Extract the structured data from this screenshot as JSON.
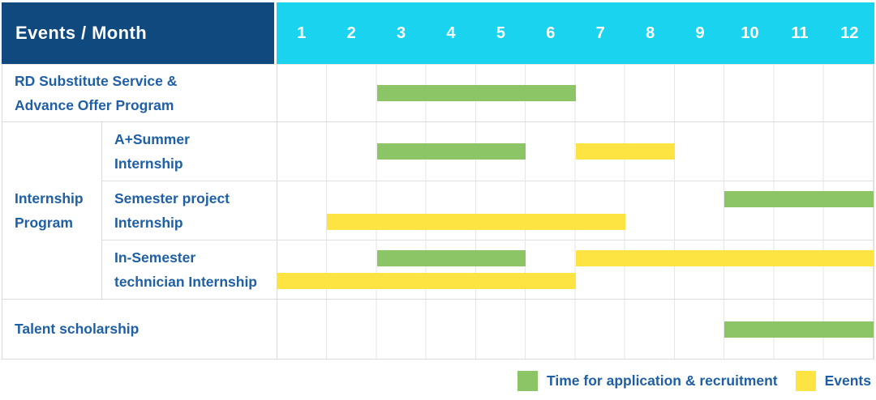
{
  "table": {
    "corner_label": "Events / Month",
    "months": [
      "1",
      "2",
      "3",
      "4",
      "5",
      "6",
      "7",
      "8",
      "9",
      "10",
      "11",
      "12"
    ],
    "group_label": "Internship\nProgram"
  },
  "colors": {
    "header_navy": "#10497E",
    "header_cyan": "#19D3EF",
    "label_blue": "#1F5FA5",
    "bar_green": "#8BC566",
    "bar_yellow": "#FDE443",
    "grid_line": "#DBDBDB"
  },
  "chart_data": {
    "type": "bar",
    "subtype": "gantt-table",
    "title": "Events / Month",
    "x_axis": {
      "label": "Month",
      "ticks": [
        1,
        2,
        3,
        4,
        5,
        6,
        7,
        8,
        9,
        10,
        11,
        12
      ],
      "range": [
        1,
        12
      ],
      "grid": true
    },
    "legend": [
      {
        "key": "application",
        "label": "Time for application & recruitment",
        "color": "#8BC566"
      },
      {
        "key": "events",
        "label": "Events",
        "color": "#FDE443"
      }
    ],
    "rows": [
      {
        "label": "RD Substitute Service &\nAdvance Offer Program",
        "group": null,
        "bars": [
          {
            "category": "Time for application & recruitment",
            "months": [
              3,
              6
            ],
            "lane": 0
          }
        ]
      },
      {
        "label": "A+Summer\nInternship",
        "group": "Internship Program",
        "bars": [
          {
            "category": "Time for application & recruitment",
            "months": [
              3,
              5
            ],
            "lane": 0
          },
          {
            "category": "Events",
            "months": [
              7,
              8
            ],
            "lane": 0
          }
        ]
      },
      {
        "label": "Semester project\nInternship",
        "group": "Internship Program",
        "bars": [
          {
            "category": "Time for application & recruitment",
            "months": [
              10,
              12
            ],
            "lane": 0
          },
          {
            "category": "Events",
            "months": [
              2,
              7
            ],
            "lane": 1
          }
        ]
      },
      {
        "label": "In-Semester\ntechnician Internship",
        "group": "Internship Program",
        "bars": [
          {
            "category": "Time for application & recruitment",
            "months": [
              3,
              5
            ],
            "lane": 0
          },
          {
            "category": "Events",
            "months": [
              7,
              12
            ],
            "lane": 0
          },
          {
            "category": "Events",
            "months": [
              1,
              6
            ],
            "lane": 1
          }
        ]
      },
      {
        "label": "Talent scholarship",
        "group": null,
        "bars": [
          {
            "category": "Time for application & recruitment",
            "months": [
              10,
              12
            ],
            "lane": 0
          }
        ]
      }
    ]
  }
}
